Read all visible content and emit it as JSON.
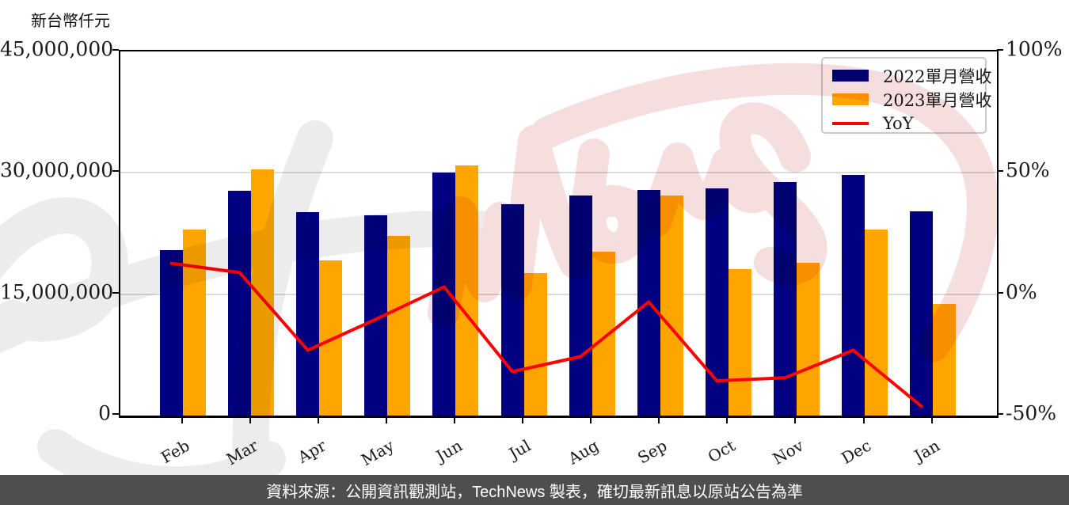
{
  "unit_label": "新台幣仟元",
  "watermark_text": "TechNews",
  "footer_text": "資料來源：公開資訊觀測站，TechNews 製表，確切最新訊息以原站公告為準",
  "colors": {
    "bar_2022": "#000080",
    "bar_2023": "#FFA500",
    "yoy_line": "#FF0000",
    "gridline": "#dcdcdc",
    "axis": "#000000",
    "footer_bg": "#4e4e4e",
    "footer_text": "#ffffff",
    "watermark_pink": "#f6dede",
    "watermark_gray": "#ececec",
    "legend_border": "#c9c9c9"
  },
  "legend": {
    "items": [
      {
        "label": "2022單月營收",
        "marker": "bar",
        "color": "#000080"
      },
      {
        "label": "2023單月營收",
        "marker": "bar",
        "color": "#FFA500"
      },
      {
        "label": "YoY",
        "marker": "line",
        "color": "#FF0000"
      }
    ]
  },
  "chart_data": {
    "type": "bar",
    "title": "",
    "categories": [
      "Feb",
      "Mar",
      "Apr",
      "May",
      "Jun",
      "Jul",
      "Aug",
      "Sep",
      "Oct",
      "Nov",
      "Dec",
      "Jan"
    ],
    "series": [
      {
        "name": "2022單月營收",
        "type": "bar",
        "axis": "left",
        "color": "#000080",
        "values": [
          20400000,
          27800000,
          25100000,
          24800000,
          30000000,
          26100000,
          27200000,
          27900000,
          28100000,
          28900000,
          29700000,
          25200000
        ]
      },
      {
        "name": "2023單月營收",
        "type": "bar",
        "axis": "left",
        "color": "#FFA500",
        "values": [
          23000000,
          30400000,
          19200000,
          22200000,
          30900000,
          17600000,
          20300000,
          27200000,
          18100000,
          18900000,
          23000000,
          13800000
        ]
      },
      {
        "name": "YoY",
        "type": "line",
        "axis": "right",
        "color": "#FF0000",
        "unit": "%",
        "values": [
          12.7,
          8.9,
          -23.1,
          -10.3,
          3.0,
          -31.9,
          -25.7,
          -3.2,
          -35.7,
          -34.4,
          -23.1,
          -46.2
        ]
      }
    ],
    "left_axis": {
      "title": "新台幣仟元",
      "range": [
        0,
        45000000
      ],
      "ticks": [
        0,
        15000000,
        30000000,
        45000000
      ],
      "tick_labels": [
        "0",
        "15,000,000",
        "30,000,000",
        "45,000,000"
      ]
    },
    "right_axis": {
      "range": [
        -50,
        100
      ],
      "ticks": [
        -50,
        0,
        50,
        100
      ],
      "tick_labels": [
        "-50%",
        "0%",
        "50%",
        "100%"
      ]
    },
    "grid": true,
    "legend_position": "top-right"
  }
}
